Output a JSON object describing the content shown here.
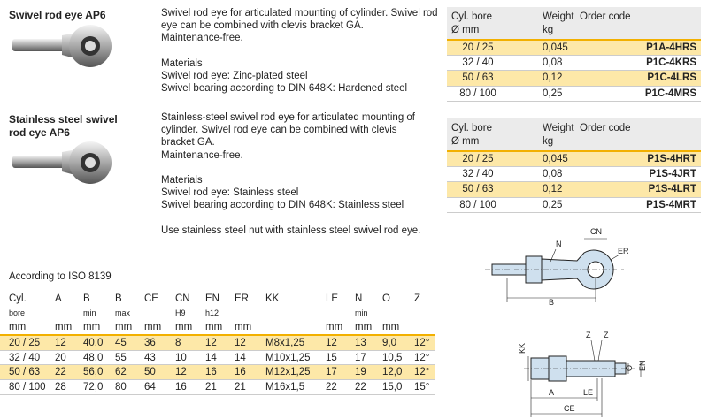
{
  "products": [
    {
      "title": "Swivel rod eye AP6",
      "paragraphs": [
        [
          "Swivel rod eye for articulated mounting of cylinder. Swivel rod",
          "eye can be combined with clevis bracket GA.",
          "Maintenance-free."
        ],
        [
          "Materials",
          "Swivel rod eye: Zinc-plated steel",
          "Swivel bearing according to DIN 648K: Hardened steel"
        ]
      ]
    },
    {
      "title": "Stainless steel swivel rod eye AP6",
      "paragraphs": [
        [
          "Stainless-steel swivel rod eye for articulated mounting of",
          "cylinder. Swivel rod eye can be combined with clevis",
          "bracket GA.",
          "Maintenance-free."
        ],
        [
          "Materials",
          "Swivel rod eye: Stainless steel",
          "Swivel bearing according to DIN 648K: Stainless steel"
        ],
        [
          "Use stainless steel nut with stainless steel swivel rod eye."
        ]
      ]
    }
  ],
  "order_tables": [
    {
      "header": [
        [
          "Cyl. bore",
          "Ø mm"
        ],
        [
          "Weight",
          "kg"
        ],
        [
          "Order code"
        ]
      ],
      "rows": [
        [
          "20 / 25",
          "0,045",
          "P1A-4HRS"
        ],
        [
          "32 / 40",
          "0,08",
          "P1C-4KRS"
        ],
        [
          "50 / 63",
          "0,12",
          "P1C-4LRS"
        ],
        [
          "80 / 100",
          "0,25",
          "P1C-4MRS"
        ]
      ]
    },
    {
      "header": [
        [
          "Cyl. bore",
          "Ø mm"
        ],
        [
          "Weight",
          "kg"
        ],
        [
          "Order code"
        ]
      ],
      "rows": [
        [
          "20 / 25",
          "0,045",
          "P1S-4HRT"
        ],
        [
          "32 / 40",
          "0,08",
          "P1S-4JRT"
        ],
        [
          "50 / 63",
          "0,12",
          "P1S-4LRT"
        ],
        [
          "80 / 100",
          "0,25",
          "P1S-4MRT"
        ]
      ]
    }
  ],
  "dimensions": {
    "title": "According to ISO 8139",
    "columns": [
      {
        "name": "Cyl.",
        "sub": "bore",
        "unit": "mm"
      },
      {
        "name": "A",
        "unit": "mm"
      },
      {
        "name": "B",
        "sub": "min",
        "unit": "mm"
      },
      {
        "name": "B",
        "sub": "max",
        "unit": "mm"
      },
      {
        "name": "CE",
        "unit": "mm"
      },
      {
        "name": "CN",
        "sub": "H9",
        "unit": "mm"
      },
      {
        "name": "EN",
        "sub": "h12",
        "unit": "mm"
      },
      {
        "name": "ER",
        "unit": "mm"
      },
      {
        "name": "KK"
      },
      {
        "name": "LE",
        "unit": "mm"
      },
      {
        "name": "N",
        "sub": "min",
        "unit": "mm"
      },
      {
        "name": "O",
        "unit": "mm"
      },
      {
        "name": "Z"
      }
    ],
    "rows": [
      [
        "20 / 25",
        "12",
        "40,0",
        "45",
        "36",
        "8",
        "12",
        "12",
        "M8x1,25",
        "12",
        "13",
        "9,0",
        "12°"
      ],
      [
        "32 / 40",
        "20",
        "48,0",
        "55",
        "43",
        "10",
        "14",
        "14",
        "M10x1,25",
        "15",
        "17",
        "10,5",
        "12°"
      ],
      [
        "50 / 63",
        "22",
        "56,0",
        "62",
        "50",
        "12",
        "16",
        "16",
        "M12x1,25",
        "17",
        "19",
        "12,0",
        "12°"
      ],
      [
        "80 / 100",
        "28",
        "72,0",
        "80",
        "64",
        "16",
        "21",
        "21",
        "M16x1,5",
        "22",
        "22",
        "15,0",
        "15°"
      ]
    ]
  },
  "diagrams": [
    {
      "labels": [
        "N",
        "CN",
        "ER",
        "B"
      ]
    },
    {
      "labels": [
        "KK",
        "Z",
        "Z",
        "O",
        "EN",
        "A",
        "LE",
        "CE"
      ]
    }
  ]
}
